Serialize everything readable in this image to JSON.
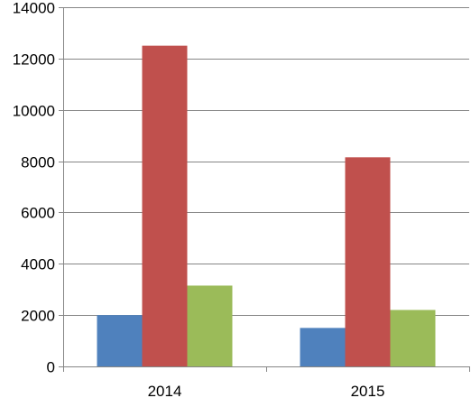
{
  "chart_data": {
    "type": "bar",
    "title": "",
    "xlabel": "",
    "ylabel": "",
    "categories": [
      "2014",
      "2015"
    ],
    "series": [
      {
        "values": [
          2000,
          1500
        ],
        "color": "#4F81BD"
      },
      {
        "values": [
          12500,
          8150
        ],
        "color": "#C0504D"
      },
      {
        "values": [
          3150,
          2200
        ],
        "color": "#9BBB59"
      }
    ],
    "ylim": [
      0,
      14000
    ],
    "yticks": [
      0,
      2000,
      4000,
      6000,
      8000,
      10000,
      12000,
      14000
    ],
    "ytick_labels": [
      "0",
      "2000",
      "4000",
      "6000",
      "8000",
      "10000",
      "12000",
      "14000"
    ],
    "grid": true,
    "legend": "none"
  }
}
